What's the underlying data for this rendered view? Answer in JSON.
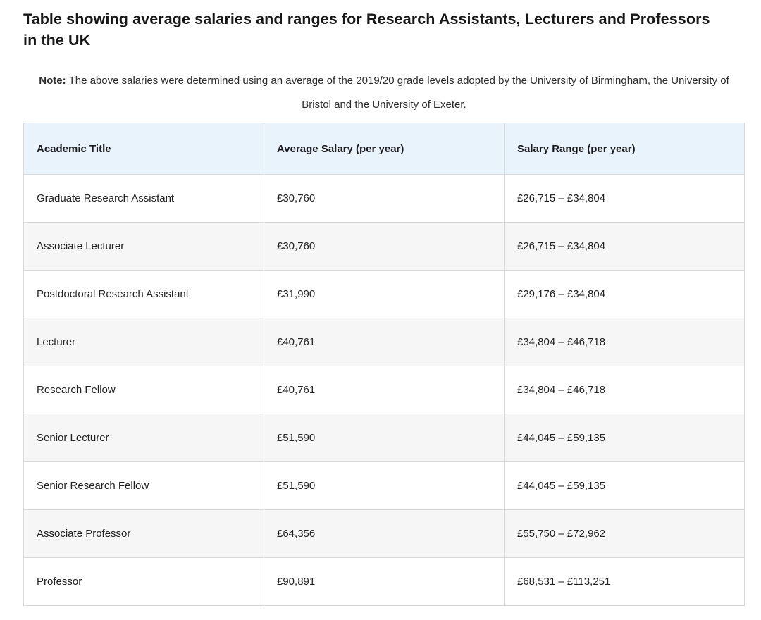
{
  "page": {
    "title": "Table showing average salaries and ranges for Research Assistants, Lecturers and Professors in the UK",
    "note_label": "Note:",
    "note_text": "The above salaries were determined using an average of the 2019/20 grade levels adopted by the University of Birmingham, the University of Bristol and the University of Exeter."
  },
  "chart_data": {
    "type": "table",
    "title": "Average salaries and ranges for Research Assistants, Lecturers and Professors in the UK",
    "columns": [
      "Academic Title",
      "Average Salary (per year)",
      "Salary Range (per year)"
    ],
    "rows": [
      {
        "title": "Graduate Research Assistant",
        "average_salary": "£30,760",
        "salary_range": "£26,715 – £34,804"
      },
      {
        "title": "Associate Lecturer",
        "average_salary": "£30,760",
        "salary_range": "£26,715 – £34,804"
      },
      {
        "title": "Postdoctoral Research Assistant",
        "average_salary": "£31,990",
        "salary_range": "£29,176 – £34,804"
      },
      {
        "title": "Lecturer",
        "average_salary": "£40,761",
        "salary_range": "£34,804 – £46,718"
      },
      {
        "title": "Research Fellow",
        "average_salary": "£40,761",
        "salary_range": "£34,804 – £46,718"
      },
      {
        "title": "Senior Lecturer",
        "average_salary": "£51,590",
        "salary_range": "£44,045 – £59,135"
      },
      {
        "title": "Senior Research Fellow",
        "average_salary": "£51,590",
        "salary_range": "£44,045 – £59,135"
      },
      {
        "title": "Associate Professor",
        "average_salary": "£64,356",
        "salary_range": "£55,750 – £72,962"
      },
      {
        "title": "Professor",
        "average_salary": "£90,891",
        "salary_range": "£68,531 – £113,251"
      }
    ],
    "colors": {
      "header_bg": "#e8f3fb",
      "row_alt_bg": "#f6f6f6",
      "border": "#d8d8d8",
      "text": "#212121"
    },
    "layout": {
      "header_row_shaded": true,
      "zebra_striping": true,
      "column_alignment": [
        "left",
        "left",
        "left"
      ]
    }
  }
}
